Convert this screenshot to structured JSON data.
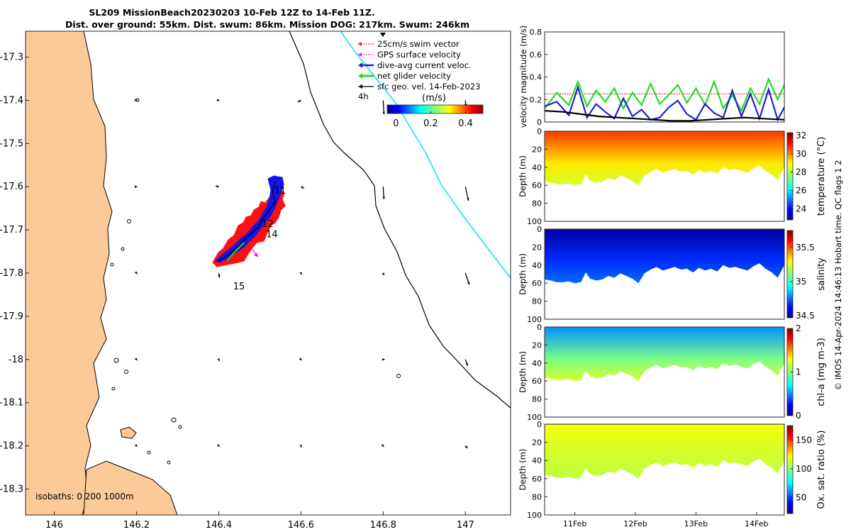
{
  "title": {
    "line1": "SL209 MissionBeach20230203 10-Feb 12Z to 14-Feb 11Z.",
    "line2": "Dist. over ground: 55km. Dist. swum: 86km. Mission DOG: 217km. Swum: 246km"
  },
  "copyright": "© IMOS 14-Apr-2024 14:46:13 Hobart time. QC flags 1  2",
  "chart_data": [
    {
      "type": "map",
      "name": "glider track map",
      "xlim": [
        145.93,
        147.11
      ],
      "ylim": [
        -18.36,
        -17.24
      ],
      "x_ticks": [
        146,
        146.2,
        146.4,
        146.6,
        146.8,
        147
      ],
      "x_tick_labels": [
        "146",
        "146.2",
        "146.4",
        "146.6",
        "146.8",
        "147"
      ],
      "y_ticks": [
        -17.3,
        -17.4,
        -17.5,
        -17.6,
        -17.7,
        -17.8,
        -17.9,
        -18,
        -18.1,
        -18.2,
        -18.3
      ],
      "y_tick_labels": [
        "-17.3",
        "-17.4",
        "-17.5",
        "-17.6",
        "-17.7",
        "-17.8",
        "-17.9",
        "-18",
        "-18.1",
        "-18.2",
        "-18.3"
      ],
      "legend": [
        {
          "label": "25cm/s swim vector",
          "color": "#e41a1c"
        },
        {
          "label": "GPS surface velocity",
          "color": "#ff00ff"
        },
        {
          "label": "dive-avg current veloc.",
          "color": "#1f1fd2"
        },
        {
          "label": "net glider velocity",
          "color": "#22dd22"
        },
        {
          "label": "sfc geo. vel. 14-Feb-2023",
          "color": "#000000"
        }
      ],
      "legend_position": "top-right",
      "scale_arrow_label": "4h",
      "colorbar": {
        "label": "(m/s)",
        "ticks": [
          "0",
          "0.2",
          "0.4"
        ],
        "range": [
          -0.05,
          0.5
        ]
      },
      "day_labels": [
        {
          "text": "11",
          "lon": 146.535,
          "lat": -17.616
        },
        {
          "text": "12",
          "lon": 146.505,
          "lat": -17.693
        },
        {
          "text": "14",
          "lon": 146.515,
          "lat": -17.717
        },
        {
          "text": "15",
          "lon": 146.435,
          "lat": -17.838
        }
      ],
      "isobath_label": "isobaths: 0   200  1000m",
      "geo_vectors": [
        [
          146.2,
          -17.4,
          0.1,
          -0.02
        ],
        [
          146.4,
          -17.4,
          0.1,
          -0.02
        ],
        [
          146.6,
          -17.4,
          -0.4,
          -0.2
        ],
        [
          146.8,
          -17.4,
          0.1,
          -1.8
        ],
        [
          147.0,
          -17.4,
          0.05,
          -0.8
        ],
        [
          146.2,
          -17.6,
          0.1,
          0.0
        ],
        [
          146.4,
          -17.6,
          -0.4,
          0.1
        ],
        [
          146.6,
          -17.6,
          0.4,
          -0.2
        ],
        [
          146.8,
          -17.6,
          0.1,
          -1.6
        ],
        [
          147.0,
          -17.6,
          0.4,
          -1.8
        ],
        [
          146.2,
          -17.8,
          0.1,
          -0.1
        ],
        [
          146.4,
          -17.8,
          0.1,
          -0.6
        ],
        [
          146.6,
          -17.8,
          0.1,
          -0.2
        ],
        [
          146.8,
          -17.8,
          0.1,
          -0.3
        ],
        [
          147.0,
          -17.8,
          0.5,
          -1.5
        ],
        [
          146.2,
          -18.0,
          0.1,
          -0.1
        ],
        [
          146.4,
          -18.0,
          0.1,
          -0.2
        ],
        [
          146.6,
          -18.0,
          0.1,
          -0.1
        ],
        [
          146.8,
          -18.0,
          0.2,
          0.0
        ],
        [
          147.0,
          -18.0,
          0.3,
          -0.8
        ],
        [
          146.2,
          -18.2,
          0.1,
          -0.1
        ],
        [
          146.4,
          -18.2,
          0.1,
          -0.1
        ],
        [
          146.6,
          -18.2,
          0.05,
          -0.2
        ],
        [
          146.8,
          -18.2,
          0.1,
          -0.1
        ],
        [
          147.0,
          -18.2,
          0.3,
          -0.3
        ]
      ]
    },
    {
      "type": "line",
      "name": "velocity magnitude",
      "ylabel": "velocity magnitude (m/s)",
      "ylim": [
        0,
        0.8
      ],
      "y_ticks": [
        "0",
        "0.2",
        "0.4",
        "0.6",
        "0.8"
      ],
      "xlim": [
        10.5,
        14.46
      ],
      "series": [
        {
          "name": "25cm/s swim vector",
          "color": "#e41a1c",
          "x": [
            10.5,
            14.46
          ],
          "y": [
            0.25,
            0.25
          ]
        },
        {
          "name": "net glider velocity",
          "color": "#22dd22",
          "x": [
            10.5,
            10.7,
            10.9,
            11.05,
            11.2,
            11.35,
            11.5,
            11.65,
            11.8,
            11.95,
            12.1,
            12.25,
            12.4,
            12.55,
            12.7,
            12.85,
            13.0,
            13.15,
            13.3,
            13.45,
            13.6,
            13.75,
            13.9,
            14.05,
            14.2,
            14.35,
            14.46
          ],
          "y": [
            0.12,
            0.26,
            0.15,
            0.36,
            0.14,
            0.28,
            0.18,
            0.3,
            0.12,
            0.26,
            0.15,
            0.34,
            0.16,
            0.24,
            0.33,
            0.17,
            0.3,
            0.15,
            0.36,
            0.12,
            0.24,
            0.1,
            0.3,
            0.16,
            0.38,
            0.2,
            0.33
          ]
        },
        {
          "name": "dive-avg current veloc.",
          "color": "#1f1fd2",
          "x": [
            10.5,
            10.7,
            10.9,
            11.05,
            11.2,
            11.35,
            11.5,
            11.65,
            11.8,
            11.95,
            12.1,
            12.25,
            12.4,
            12.55,
            12.7,
            12.85,
            13.0,
            13.15,
            13.3,
            13.45,
            13.6,
            13.75,
            13.9,
            14.05,
            14.2,
            14.35,
            14.46
          ],
          "y": [
            0.14,
            0.18,
            0.06,
            0.31,
            0.04,
            0.16,
            0.09,
            0.03,
            0.21,
            0.05,
            0.11,
            0.02,
            0.04,
            0.13,
            0.19,
            0.07,
            0.02,
            0.16,
            0.08,
            0.04,
            0.28,
            0.05,
            0.25,
            0.03,
            0.29,
            0.02,
            0.13
          ]
        },
        {
          "name": "sfc geo. vel.",
          "color": "#000000",
          "x": [
            10.5,
            10.8,
            11.1,
            11.4,
            11.7,
            12.0,
            12.3,
            12.6,
            12.9,
            13.2,
            13.5,
            13.8,
            14.1,
            14.46
          ],
          "y": [
            0.1,
            0.09,
            0.07,
            0.05,
            0.04,
            0.03,
            0.02,
            0.01,
            0.01,
            0.02,
            0.03,
            0.04,
            0.03,
            0.02
          ]
        }
      ]
    },
    {
      "type": "heatmap",
      "name": "temperature section",
      "ylabel": "Depth (m)",
      "cbar_label": "temperature (°C)",
      "clim": [
        22.8,
        32.3
      ],
      "cbar_ticks": [
        24,
        26,
        28,
        30,
        32
      ],
      "depth_ticks": [
        "0",
        "20",
        "40",
        "60",
        "80",
        "100"
      ],
      "ylim": [
        100,
        0
      ],
      "typical_surface": 30.7,
      "typical_bottom": 28.5
    },
    {
      "type": "heatmap",
      "name": "salinity section",
      "ylabel": "Depth (m)",
      "cbar_label": "salinity",
      "clim": [
        34.47,
        35.75
      ],
      "cbar_ticks": [
        34.5,
        35,
        35.5
      ],
      "cbar_tick_labels": [
        "34.5",
        "35",
        "35.5"
      ],
      "depth_ticks": [
        "0",
        "20",
        "40",
        "60",
        "80",
        "100"
      ],
      "ylim": [
        100,
        0
      ],
      "typical_surface": 34.5,
      "typical_bottom": 34.75
    },
    {
      "type": "heatmap",
      "name": "chlorophyll section",
      "ylabel": "Depth (m)",
      "cbar_label": "chl-a (mg m-3)",
      "clim": [
        0,
        2
      ],
      "cbar_ticks": [
        0,
        1,
        2
      ],
      "depth_ticks": [
        "0",
        "20",
        "40",
        "60",
        "80",
        "100"
      ],
      "ylim": [
        100,
        0
      ],
      "typical_surface": 0.5,
      "typical_bottom": 1.2
    },
    {
      "type": "heatmap",
      "name": "oxygen saturation section",
      "ylabel": "Depth (m)",
      "cbar_label": "Ox. sat. ratio (%)",
      "clim": [
        22,
        175
      ],
      "cbar_ticks": [
        50,
        100,
        150
      ],
      "depth_ticks": [
        "0",
        "20",
        "40",
        "60",
        "80",
        "100"
      ],
      "ylim": [
        100,
        0
      ],
      "typical_surface": 120,
      "typical_bottom": 110
    }
  ],
  "time_axis": {
    "xlim": [
      10.5,
      14.46
    ],
    "ticks": [
      11,
      12,
      13,
      14
    ],
    "tick_labels": [
      "11Feb",
      "12Feb",
      "13Feb",
      "14Feb"
    ]
  },
  "seafloor_depths": {
    "t": [
      10.5,
      10.6,
      10.7,
      10.8,
      10.9,
      11.0,
      11.1,
      11.18,
      11.25,
      11.35,
      11.45,
      11.55,
      11.65,
      11.75,
      11.85,
      11.95,
      12.05,
      12.15,
      12.25,
      12.35,
      12.45,
      12.55,
      12.65,
      12.75,
      12.85,
      12.95,
      13.05,
      13.15,
      13.25,
      13.35,
      13.45,
      13.55,
      13.65,
      13.75,
      13.85,
      13.95,
      14.05,
      14.15,
      14.25,
      14.35,
      14.46
    ],
    "d": [
      56,
      57,
      59,
      59,
      58,
      60,
      59,
      48,
      55,
      57,
      56,
      52,
      54,
      49,
      52,
      55,
      60,
      49,
      45,
      42,
      46,
      44,
      42,
      45,
      44,
      48,
      43,
      46,
      44,
      47,
      40,
      43,
      42,
      44,
      46,
      41,
      38,
      44,
      48,
      54,
      40
    ]
  }
}
